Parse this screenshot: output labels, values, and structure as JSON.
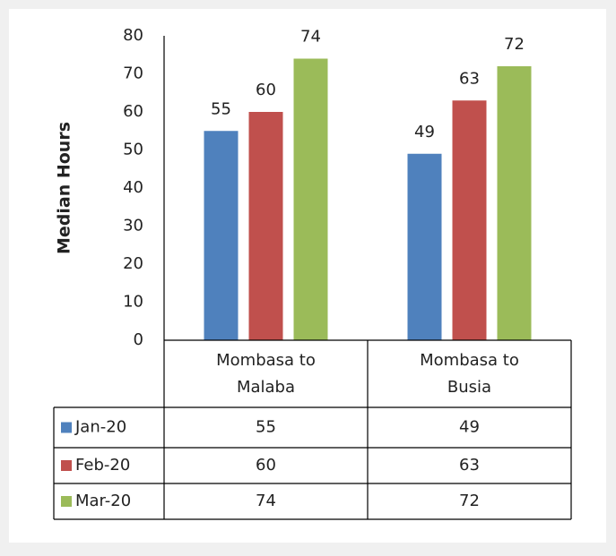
{
  "chart_data": {
    "type": "bar",
    "y_label": "Median Hours",
    "categories": [
      "Mombasa to Malaba",
      "Mombasa to Busia"
    ],
    "series": [
      {
        "name": "Jan-20",
        "color": "#4f81bd",
        "values": [
          55,
          49
        ]
      },
      {
        "name": "Feb-20",
        "color": "#c0504d",
        "values": [
          60,
          63
        ]
      },
      {
        "name": "Mar-20",
        "color": "#9bbb59",
        "values": [
          74,
          72
        ]
      }
    ],
    "ylim": [
      0,
      80
    ],
    "yticks": [
      0,
      10,
      20,
      30,
      40,
      50,
      60,
      70,
      80
    ],
    "grid": false
  }
}
